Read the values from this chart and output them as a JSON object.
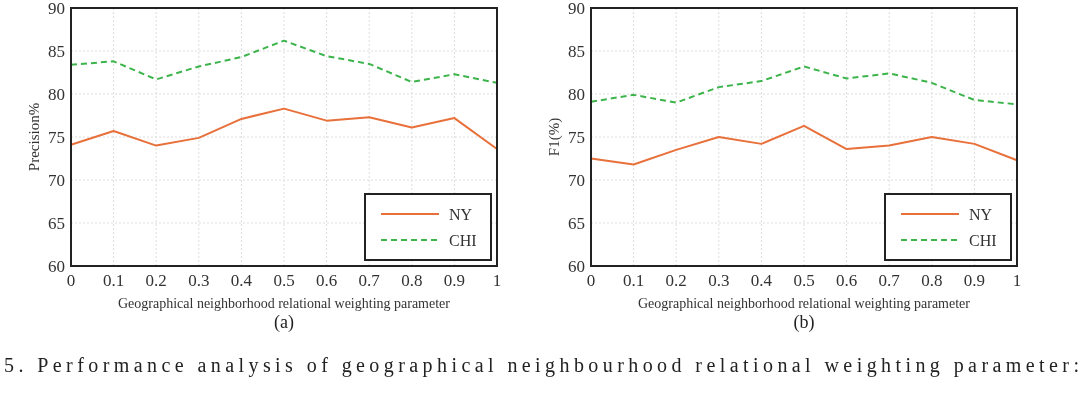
{
  "chart_data": [
    {
      "type": "line",
      "ylabel": "Precision%",
      "xlabel": "Geographical neighborhood relational weighting parameter",
      "annotations": [
        "(a)"
      ],
      "x": [
        0,
        0.1,
        0.2,
        0.3,
        0.4,
        0.5,
        0.6,
        0.7,
        0.8,
        0.9,
        1
      ],
      "xlim": [
        0,
        1
      ],
      "xticks": [
        0,
        0.1,
        0.2,
        0.3,
        0.4,
        0.5,
        0.6,
        0.7,
        0.8,
        0.9,
        1
      ],
      "ylim": [
        60,
        90
      ],
      "yticks": [
        60,
        65,
        70,
        75,
        80,
        85,
        90
      ],
      "grid": true,
      "legend": "bottom right",
      "marker": "none",
      "series": [
        {
          "name": "NY",
          "color": "#e8703a",
          "line_style": "solid",
          "values": [
            74.1,
            75.7,
            74.0,
            74.9,
            77.1,
            78.3,
            76.9,
            77.3,
            76.1,
            77.2,
            73.6
          ]
        },
        {
          "name": "CHI",
          "color": "#3cb44b",
          "line_style": "dashed",
          "values": [
            83.4,
            83.8,
            81.7,
            83.2,
            84.3,
            86.2,
            84.4,
            83.5,
            81.4,
            82.3,
            81.3
          ]
        }
      ]
    },
    {
      "type": "line",
      "ylabel": "F1(%)",
      "xlabel": "Geographical neighborhood relational weighting parameter",
      "annotations": [
        "(b)",
        "5. Performance analysis of geographical neighbourhood relational weighting parameter:"
      ],
      "x": [
        0,
        0.1,
        0.2,
        0.3,
        0.4,
        0.5,
        0.6,
        0.7,
        0.8,
        0.9,
        1
      ],
      "xlim": [
        0,
        1
      ],
      "xticks": [
        0,
        0.1,
        0.2,
        0.3,
        0.4,
        0.5,
        0.6,
        0.7,
        0.8,
        0.9,
        1
      ],
      "ylim": [
        60,
        90
      ],
      "yticks": [
        60,
        65,
        70,
        75,
        80,
        85,
        90
      ],
      "grid": true,
      "legend": "bottom right",
      "marker": "none",
      "series": [
        {
          "name": "NY",
          "color": "#e8703a",
          "line_style": "solid",
          "values": [
            72.5,
            71.8,
            73.5,
            75.0,
            74.2,
            76.3,
            73.6,
            74.0,
            75.0,
            74.2,
            72.3
          ]
        },
        {
          "name": "CHI",
          "color": "#3cb44b",
          "line_style": "dashed",
          "values": [
            79.1,
            79.9,
            79.0,
            80.8,
            81.5,
            83.2,
            81.8,
            82.4,
            81.3,
            79.3,
            78.8
          ]
        }
      ]
    }
  ]
}
